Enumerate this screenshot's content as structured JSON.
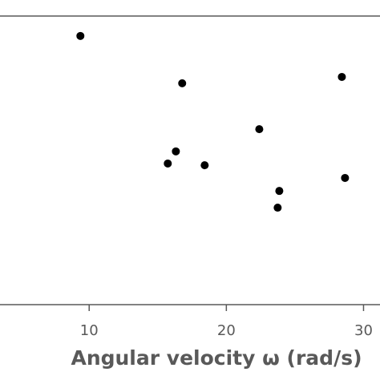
{
  "chart_data": {
    "type": "scatter",
    "x_label": "Angular velocity ω (rad/s)",
    "xlim": [
      3.5,
      31.2
    ],
    "xticks": [
      10,
      20,
      30
    ],
    "ylim": [
      0,
      100
    ],
    "color": "#000000",
    "x": [
      9.36,
      16.78,
      28.42,
      22.4,
      16.32,
      15.73,
      18.42,
      28.65,
      23.86,
      23.74
    ],
    "values": [
      93.1,
      76.7,
      78.9,
      60.8,
      53.1,
      48.9,
      48.3,
      43.9,
      39.4,
      33.6
    ]
  }
}
